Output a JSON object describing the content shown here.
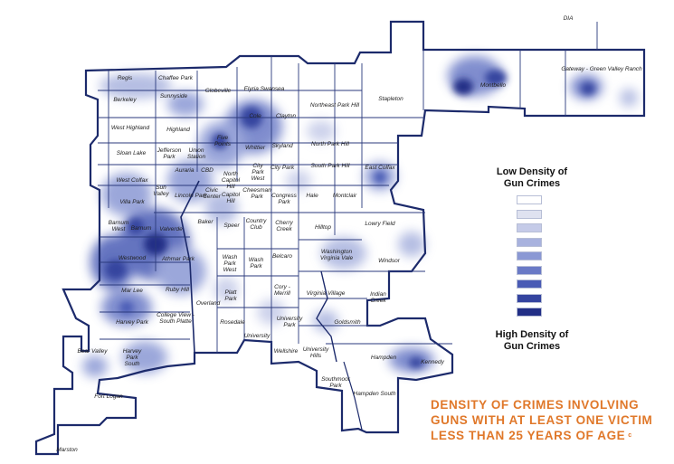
{
  "legend": {
    "low_label": "Low Density of Gun Crimes",
    "high_label": "High Density of Gun Crimes",
    "colors": [
      "#ffffff",
      "#dfe2f0",
      "#c5cbe8",
      "#a8b2de",
      "#8a98d4",
      "#6a7ac6",
      "#4a5bb5",
      "#34449f",
      "#222f86"
    ]
  },
  "caption": {
    "line1": "DENSITY OF CRIMES INVOLVING",
    "line2": "GUNS WITH AT LEAST ONE VICTIM",
    "line3": "LESS THAN 25 YEARS OF AGE",
    "note": "c"
  },
  "neighborhoods": [
    "DIA",
    "Montbello",
    "Gateway - Green Valley Ranch",
    "Stapleton",
    "Regis",
    "Chaffee Park",
    "Berkeley",
    "Sunnyside",
    "Globeville",
    "Elyria Swansea",
    "West Highland",
    "Highland",
    "Five Points",
    "Cole",
    "Clayton",
    "Northeast Park Hill",
    "Sloan Lake",
    "Jefferson Park",
    "Union Station",
    "Whittier",
    "Skyland",
    "North Park Hill",
    "Auraria",
    "CBD",
    "North Capitol Hill",
    "City Park West",
    "City Park",
    "South Park Hill",
    "East Colfax",
    "West Colfax",
    "Sun Valley",
    "Lincoln Park",
    "Civic Center",
    "Capitol Hill",
    "Cheesman Park",
    "Congress Park",
    "Hale",
    "Montclair",
    "Villa Park",
    "Barnum West",
    "Barnum",
    "Valverde",
    "Baker",
    "Speer",
    "Country Club",
    "Cherry Creek",
    "Hilltop",
    "Lowry Field",
    "Westwood",
    "Athmar Park",
    "Wash Park West",
    "Wash Park",
    "Belcaro",
    "Washington Virginia Vale",
    "Windsor",
    "Mar Lee",
    "Ruby Hill",
    "Platt Park",
    "Cory - Merrill",
    "Virginia Village",
    "Indian Creek",
    "Harvey Park",
    "College View - South Platte",
    "Overland",
    "Rosedale",
    "University Park",
    "Goldsmith",
    "University",
    "Bear Valley",
    "Harvey Park South",
    "Wellshire",
    "University Hills",
    "Hampden",
    "Kennedy",
    "Southmoor Park",
    "Hampden South",
    "Fort Logan",
    "Marston"
  ]
}
